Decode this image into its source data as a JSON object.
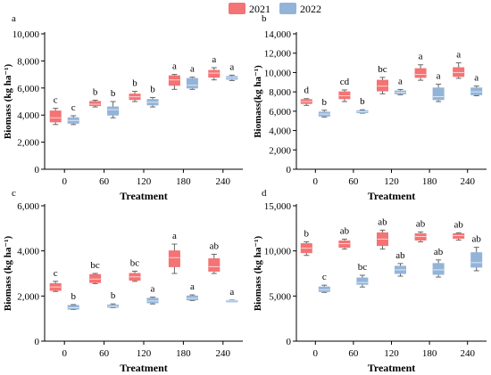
{
  "legend": {
    "placement": "top-center",
    "items": [
      {
        "label": "2021",
        "color": "#f47374"
      },
      {
        "label": "2022",
        "color": "#93b4d9"
      }
    ]
  },
  "chart_data": [
    {
      "panel": "a",
      "type": "box",
      "xlabel": "Treatment",
      "ylabel": "Biomass (kg ha⁻¹)",
      "ylim": [
        0,
        10000
      ],
      "yticks": [
        0,
        2000,
        4000,
        6000,
        8000,
        10000
      ],
      "ytick_labels": [
        "0",
        "2,000",
        "4,000",
        "6,000",
        "8,000",
        "10,000"
      ],
      "categories": [
        "0",
        "60",
        "120",
        "180",
        "240"
      ],
      "series": [
        {
          "name": "2021",
          "color": "#f47374",
          "boxes": [
            {
              "low": 3300,
              "q1": 3500,
              "median": 3800,
              "q3": 4300,
              "high": 4500,
              "letter": "c"
            },
            {
              "low": 4600,
              "q1": 4700,
              "median": 4800,
              "q3": 5000,
              "high": 5100,
              "letter": "b"
            },
            {
              "low": 5000,
              "q1": 5150,
              "median": 5350,
              "q3": 5550,
              "high": 5750,
              "letter": "b"
            },
            {
              "low": 5900,
              "q1": 6200,
              "median": 6600,
              "q3": 6900,
              "high": 7000,
              "letter": "a"
            },
            {
              "low": 6600,
              "q1": 6800,
              "median": 7100,
              "q3": 7300,
              "high": 7500,
              "letter": "a"
            }
          ]
        },
        {
          "name": "2022",
          "color": "#93b4d9",
          "boxes": [
            {
              "low": 3300,
              "q1": 3400,
              "median": 3600,
              "q3": 3800,
              "high": 3950,
              "letter": "c"
            },
            {
              "low": 3800,
              "q1": 4000,
              "median": 4400,
              "q3": 4600,
              "high": 5000,
              "letter": "b"
            },
            {
              "low": 4600,
              "q1": 4750,
              "median": 4950,
              "q3": 5150,
              "high": 5300,
              "letter": "b"
            },
            {
              "low": 5900,
              "q1": 6000,
              "median": 6200,
              "q3": 6700,
              "high": 6800,
              "letter": "a"
            },
            {
              "low": 6550,
              "q1": 6650,
              "median": 6750,
              "q3": 6850,
              "high": 6950,
              "letter": "a"
            }
          ]
        }
      ]
    },
    {
      "panel": "b",
      "type": "box",
      "xlabel": "Treatment",
      "ylabel": "Biomass(kg ha⁻¹)",
      "ylim": [
        0,
        14000
      ],
      "yticks": [
        0,
        2000,
        4000,
        6000,
        8000,
        10000,
        12000,
        14000
      ],
      "ytick_labels": [
        "0",
        "2,000",
        "4,000",
        "6,000",
        "8,000",
        "10,000",
        "12,000",
        "14,000"
      ],
      "categories": [
        "0",
        "60",
        "120",
        "180",
        "240"
      ],
      "series": [
        {
          "name": "2021",
          "color": "#f47374",
          "boxes": [
            {
              "low": 6600,
              "q1": 6800,
              "median": 7000,
              "q3": 7200,
              "high": 7300,
              "letter": "d"
            },
            {
              "low": 7000,
              "q1": 7300,
              "median": 7600,
              "q3": 8000,
              "high": 8200,
              "letter": "cd"
            },
            {
              "low": 7800,
              "q1": 8100,
              "median": 8600,
              "q3": 9200,
              "high": 9500,
              "letter": "bc"
            },
            {
              "low": 9200,
              "q1": 9500,
              "median": 9800,
              "q3": 10400,
              "high": 10800,
              "letter": "a"
            },
            {
              "low": 9400,
              "q1": 9600,
              "median": 10000,
              "q3": 10500,
              "high": 11000,
              "letter": "a"
            }
          ]
        },
        {
          "name": "2022",
          "color": "#93b4d9",
          "boxes": [
            {
              "low": 5400,
              "q1": 5500,
              "median": 5700,
              "q3": 5900,
              "high": 6100,
              "letter": "b"
            },
            {
              "low": 5800,
              "q1": 5850,
              "median": 5950,
              "q3": 6050,
              "high": 6150,
              "letter": "b"
            },
            {
              "low": 7700,
              "q1": 7800,
              "median": 7950,
              "q3": 8100,
              "high": 8250,
              "letter": "a"
            },
            {
              "low": 7000,
              "q1": 7200,
              "median": 7500,
              "q3": 8400,
              "high": 8800,
              "letter": "a"
            },
            {
              "low": 7600,
              "q1": 7700,
              "median": 8000,
              "q3": 8400,
              "high": 8600,
              "letter": "a"
            }
          ]
        }
      ]
    },
    {
      "panel": "c",
      "type": "box",
      "xlabel": "Treatment",
      "ylabel": "Biomass (kg ha⁻¹)",
      "ylim": [
        0,
        6000
      ],
      "yticks": [
        0,
        2000,
        4000,
        6000
      ],
      "ytick_labels": [
        "0",
        "2,000",
        "4,000",
        "6,000"
      ],
      "categories": [
        "0",
        "60",
        "120",
        "180",
        "240"
      ],
      "series": [
        {
          "name": "2021",
          "color": "#f47374",
          "boxes": [
            {
              "low": 2200,
              "q1": 2250,
              "median": 2400,
              "q3": 2550,
              "high": 2650,
              "letter": "c"
            },
            {
              "low": 2550,
              "q1": 2600,
              "median": 2750,
              "q3": 2950,
              "high": 3000,
              "letter": "bc"
            },
            {
              "low": 2650,
              "q1": 2700,
              "median": 2850,
              "q3": 3000,
              "high": 3100,
              "letter": "bc"
            },
            {
              "low": 3000,
              "q1": 3300,
              "median": 3700,
              "q3": 4000,
              "high": 4300,
              "letter": "a"
            },
            {
              "low": 3000,
              "q1": 3100,
              "median": 3300,
              "q3": 3650,
              "high": 3850,
              "letter": "ab"
            }
          ]
        },
        {
          "name": "2022",
          "color": "#93b4d9",
          "boxes": [
            {
              "low": 1400,
              "q1": 1420,
              "median": 1480,
              "q3": 1580,
              "high": 1620,
              "letter": "b"
            },
            {
              "low": 1480,
              "q1": 1500,
              "median": 1540,
              "q3": 1600,
              "high": 1650,
              "letter": "b"
            },
            {
              "low": 1650,
              "q1": 1700,
              "median": 1780,
              "q3": 1900,
              "high": 1950,
              "letter": "a"
            },
            {
              "low": 1800,
              "q1": 1830,
              "median": 1900,
              "q3": 2000,
              "high": 2050,
              "letter": "a"
            },
            {
              "low": 1760,
              "q1": 1770,
              "median": 1780,
              "q3": 1800,
              "high": 1820,
              "letter": "a"
            }
          ]
        }
      ]
    },
    {
      "panel": "d",
      "type": "box",
      "xlabel": "Treatment",
      "ylabel": "Biomass (kg ha⁻¹)",
      "ylim": [
        0,
        15000
      ],
      "yticks": [
        0,
        5000,
        10000,
        15000
      ],
      "ytick_labels": [
        "0",
        "5,000",
        "10,000",
        "15,000"
      ],
      "categories": [
        "0",
        "60",
        "120",
        "180",
        "240"
      ],
      "series": [
        {
          "name": "2021",
          "color": "#f47374",
          "boxes": [
            {
              "low": 9500,
              "q1": 9800,
              "median": 10300,
              "q3": 10800,
              "high": 11000,
              "letter": "b"
            },
            {
              "low": 10200,
              "q1": 10400,
              "median": 10800,
              "q3": 11100,
              "high": 11300,
              "letter": "ab"
            },
            {
              "low": 10200,
              "q1": 10600,
              "median": 11300,
              "q3": 12000,
              "high": 12300,
              "letter": "ab"
            },
            {
              "low": 11000,
              "q1": 11200,
              "median": 11600,
              "q3": 11900,
              "high": 12100,
              "letter": "ab"
            },
            {
              "low": 11200,
              "q1": 11400,
              "median": 11700,
              "q3": 11900,
              "high": 12000,
              "letter": "ab"
            }
          ]
        },
        {
          "name": "2022",
          "color": "#93b4d9",
          "boxes": [
            {
              "low": 5400,
              "q1": 5500,
              "median": 5700,
              "q3": 6000,
              "high": 6200,
              "letter": "c"
            },
            {
              "low": 6000,
              "q1": 6300,
              "median": 6500,
              "q3": 7000,
              "high": 7300,
              "letter": "bc"
            },
            {
              "low": 7200,
              "q1": 7500,
              "median": 7900,
              "q3": 8300,
              "high": 8600,
              "letter": "ab"
            },
            {
              "low": 7100,
              "q1": 7400,
              "median": 7900,
              "q3": 8600,
              "high": 9000,
              "letter": "ab"
            },
            {
              "low": 7800,
              "q1": 8200,
              "median": 8700,
              "q3": 9800,
              "high": 10400,
              "letter": "ab"
            }
          ]
        }
      ]
    }
  ]
}
